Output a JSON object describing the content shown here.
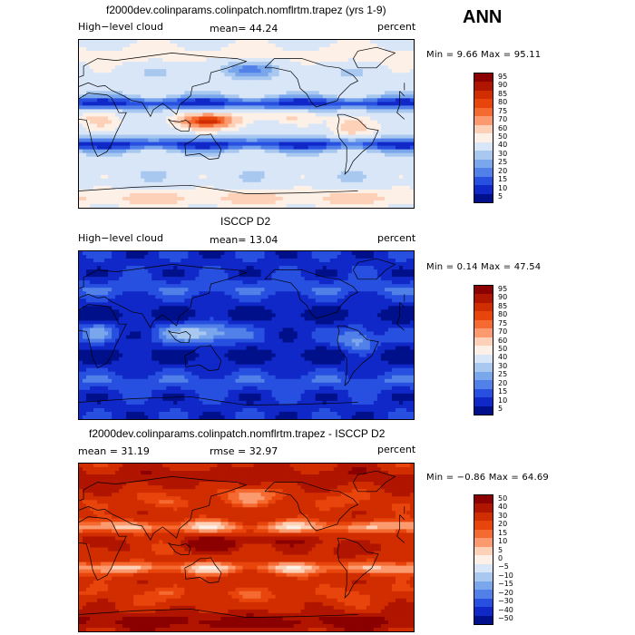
{
  "season": "ANN",
  "chart_data": [
    {
      "type": "heatmap",
      "title": "f2000dev.colinparams.colinpatch.nomflrtm.trapez (yrs 1-9)",
      "left_label": "High−level cloud",
      "center_label": "mean=  44.24",
      "right_label": "percent",
      "min_max_label": "Min =   9.66  Max =  95.11",
      "min": 9.66,
      "max": 95.11,
      "mean": 44.24,
      "colorbar_levels": [
        "95",
        "90",
        "85",
        "80",
        "75",
        "70",
        "60",
        "50",
        "40",
        "30",
        "25",
        "20",
        "15",
        "10",
        "5"
      ],
      "colorbar_colors": [
        "#8b0000",
        "#b01500",
        "#d02d00",
        "#e8450c",
        "#f56a30",
        "#fb9a6e",
        "#fdd0b8",
        "#fdf0e6",
        "#d8e6f8",
        "#a8c8f0",
        "#7aa6ec",
        "#5080e8",
        "#2850e0",
        "#1028c8",
        "#00108a"
      ],
      "field": "model"
    },
    {
      "type": "heatmap",
      "title": "ISCCP D2",
      "left_label": "High−level cloud",
      "center_label": "mean=  13.04",
      "right_label": "percent",
      "min_max_label": "Min =   0.14  Max =  47.54",
      "min": 0.14,
      "max": 47.54,
      "mean": 13.04,
      "colorbar_levels": [
        "95",
        "90",
        "85",
        "80",
        "75",
        "70",
        "60",
        "50",
        "40",
        "30",
        "25",
        "20",
        "15",
        "10",
        "5"
      ],
      "colorbar_colors": [
        "#8b0000",
        "#b01500",
        "#d02d00",
        "#e8450c",
        "#f56a30",
        "#fb9a6e",
        "#fdd0b8",
        "#fdf0e6",
        "#d8e6f8",
        "#a8c8f0",
        "#7aa6ec",
        "#5080e8",
        "#2850e0",
        "#1028c8",
        "#00108a"
      ],
      "field": "obs"
    },
    {
      "type": "heatmap",
      "title": "f2000dev.colinparams.colinpatch.nomflrtm.trapez - ISCCP D2",
      "left_label": "mean =   31.19",
      "center_label": "rmse =  32.97",
      "right_label": "percent",
      "min_max_label": "Min =  −0.86  Max =  64.69",
      "min": -0.86,
      "max": 64.69,
      "mean": 31.19,
      "rmse": 32.97,
      "colorbar_levels": [
        "50",
        "40",
        "30",
        "20",
        "15",
        "10",
        "5",
        "0",
        "−5",
        "−10",
        "−15",
        "−20",
        "−30",
        "−40",
        "−50"
      ],
      "colorbar_colors": [
        "#8b0000",
        "#b01500",
        "#d02d00",
        "#e8450c",
        "#f56a30",
        "#fb9a6e",
        "#fdd0b8",
        "#fdf0e6",
        "#d8e6f8",
        "#a8c8f0",
        "#7aa6ec",
        "#5080e8",
        "#2850e0",
        "#1028c8",
        "#00108a"
      ],
      "field": "diff"
    }
  ]
}
